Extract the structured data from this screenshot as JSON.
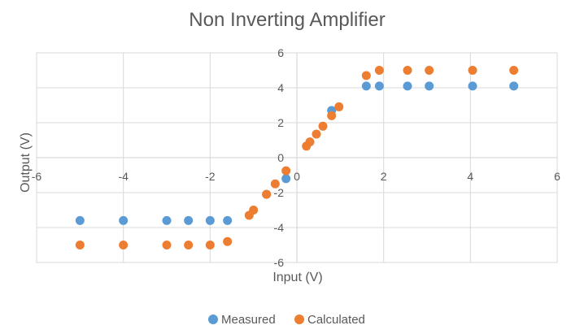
{
  "chart_data": {
    "type": "scatter",
    "title": "Non Inverting Amplifier",
    "xlabel": "Input (V)",
    "ylabel": "Output (V)",
    "xlim": [
      -6,
      6
    ],
    "ylim": [
      -6,
      6
    ],
    "xticks": [
      -6,
      -4,
      -2,
      0,
      2,
      4,
      6
    ],
    "yticks": [
      -6,
      -4,
      -2,
      0,
      2,
      4,
      6
    ],
    "grid": true,
    "legend_position": "bottom",
    "series": [
      {
        "name": "Measured",
        "color": "#5b9bd5",
        "points": [
          {
            "x": -5,
            "y": -3.6
          },
          {
            "x": -4,
            "y": -3.6
          },
          {
            "x": -3,
            "y": -3.6
          },
          {
            "x": -2.5,
            "y": -3.6
          },
          {
            "x": -2,
            "y": -3.6
          },
          {
            "x": -1.6,
            "y": -3.6
          },
          {
            "x": -0.7,
            "y": -2.1
          },
          {
            "x": -0.25,
            "y": -1.2
          },
          {
            "x": 0.8,
            "y": 2.7
          },
          {
            "x": 1.6,
            "y": 4.1
          },
          {
            "x": 1.9,
            "y": 4.1
          },
          {
            "x": 2.55,
            "y": 4.1
          },
          {
            "x": 3.05,
            "y": 4.1
          },
          {
            "x": 4.05,
            "y": 4.1
          },
          {
            "x": 5,
            "y": 4.1
          }
        ]
      },
      {
        "name": "Calculated",
        "color": "#ed7d31",
        "points": [
          {
            "x": -5,
            "y": -5
          },
          {
            "x": -4,
            "y": -5
          },
          {
            "x": -3,
            "y": -5
          },
          {
            "x": -2.5,
            "y": -5
          },
          {
            "x": -2,
            "y": -5
          },
          {
            "x": -1.6,
            "y": -4.8
          },
          {
            "x": -1.1,
            "y": -3.3
          },
          {
            "x": -1.0,
            "y": -3.0
          },
          {
            "x": -0.7,
            "y": -2.1
          },
          {
            "x": -0.5,
            "y": -1.5
          },
          {
            "x": -0.25,
            "y": -0.75
          },
          {
            "x": 0.22,
            "y": 0.66
          },
          {
            "x": 0.3,
            "y": 0.9
          },
          {
            "x": 0.45,
            "y": 1.35
          },
          {
            "x": 0.6,
            "y": 1.8
          },
          {
            "x": 0.8,
            "y": 2.4
          },
          {
            "x": 0.97,
            "y": 2.91
          },
          {
            "x": 1.6,
            "y": 4.7
          },
          {
            "x": 1.9,
            "y": 5
          },
          {
            "x": 2.55,
            "y": 5
          },
          {
            "x": 3.05,
            "y": 5
          },
          {
            "x": 4.05,
            "y": 5
          },
          {
            "x": 5,
            "y": 5
          }
        ]
      }
    ]
  }
}
